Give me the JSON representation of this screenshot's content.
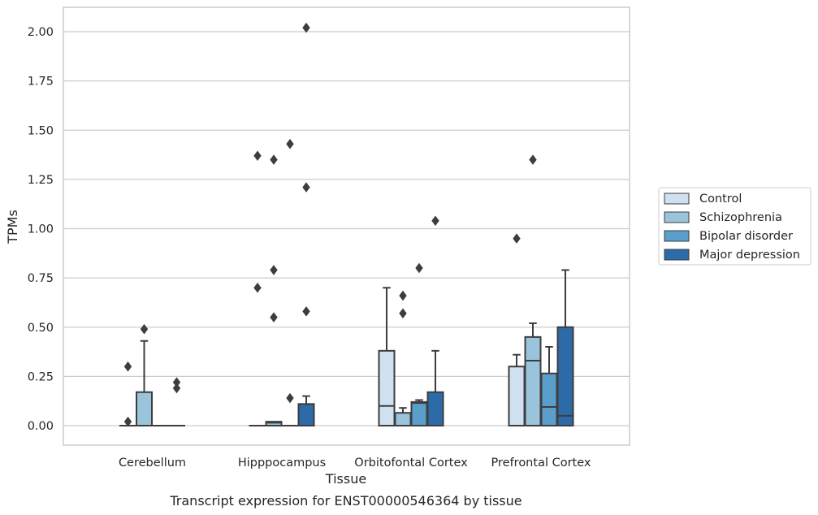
{
  "chart_data": {
    "type": "box",
    "title": "Transcript expression for ENST00000546364 by tissue",
    "xlabel": "Tissue",
    "ylabel": "TPMs",
    "ylim": [
      -0.1,
      2.12
    ],
    "yticks": [
      0.0,
      0.25,
      0.5,
      0.75,
      1.0,
      1.25,
      1.5,
      1.75,
      2.0
    ],
    "ytick_labels": [
      "0.00",
      "0.25",
      "0.50",
      "0.75",
      "1.00",
      "1.25",
      "1.50",
      "1.75",
      "2.00"
    ],
    "grid": "horizontal",
    "legend_position": "right",
    "categories": [
      "Cerebellum",
      "Hipppocampus",
      "Orbitofontal Cortex",
      "Prefrontal Cortex"
    ],
    "series": [
      {
        "name": "Control",
        "color": "#cfe1f0",
        "boxes": [
          {
            "q1": 0.0,
            "median": 0.0,
            "q3": 0.0,
            "whisker_low": 0.0,
            "whisker_high": 0.0,
            "outliers": [
              0.02,
              0.3
            ]
          },
          {
            "q1": 0.0,
            "median": 0.0,
            "q3": 0.0,
            "whisker_low": 0.0,
            "whisker_high": 0.0,
            "outliers": [
              0.7,
              1.37
            ]
          },
          {
            "q1": 0.0,
            "median": 0.1,
            "q3": 0.38,
            "whisker_low": 0.0,
            "whisker_high": 0.7,
            "outliers": []
          },
          {
            "q1": 0.0,
            "median": 0.0,
            "q3": 0.3,
            "whisker_low": 0.0,
            "whisker_high": 0.36,
            "outliers": [
              0.95
            ]
          }
        ]
      },
      {
        "name": "Schizophrenia",
        "color": "#9ac3dc",
        "boxes": [
          {
            "q1": 0.0,
            "median": 0.0,
            "q3": 0.17,
            "whisker_low": 0.0,
            "whisker_high": 0.43,
            "outliers": [
              0.49
            ]
          },
          {
            "q1": 0.0,
            "median": 0.015,
            "q3": 0.02,
            "whisker_low": 0.0,
            "whisker_high": 0.02,
            "outliers": [
              0.55,
              0.79,
              1.35
            ]
          },
          {
            "q1": 0.0,
            "median": 0.0,
            "q3": 0.065,
            "whisker_low": 0.0,
            "whisker_high": 0.09,
            "outliers": [
              0.57,
              0.66
            ]
          },
          {
            "q1": 0.0,
            "median": 0.33,
            "q3": 0.45,
            "whisker_low": 0.0,
            "whisker_high": 0.52,
            "outliers": [
              1.35
            ]
          }
        ]
      },
      {
        "name": "Bipolar disorder",
        "color": "#5b9ecb",
        "boxes": [
          {
            "q1": 0.0,
            "median": 0.0,
            "q3": 0.0,
            "whisker_low": 0.0,
            "whisker_high": 0.0,
            "outliers": []
          },
          {
            "q1": 0.0,
            "median": 0.0,
            "q3": 0.0,
            "whisker_low": 0.0,
            "whisker_high": 0.0,
            "outliers": [
              0.14,
              1.43
            ]
          },
          {
            "q1": 0.0,
            "median": 0.115,
            "q3": 0.12,
            "whisker_low": 0.0,
            "whisker_high": 0.13,
            "outliers": [
              0.8
            ]
          },
          {
            "q1": 0.0,
            "median": 0.095,
            "q3": 0.265,
            "whisker_low": 0.0,
            "whisker_high": 0.4,
            "outliers": []
          }
        ]
      },
      {
        "name": "Major depression",
        "color": "#2c6aa8",
        "boxes": [
          {
            "q1": 0.0,
            "median": 0.0,
            "q3": 0.0,
            "whisker_low": 0.0,
            "whisker_high": 0.0,
            "outliers": [
              0.19,
              0.22
            ]
          },
          {
            "q1": 0.0,
            "median": 0.0,
            "q3": 0.11,
            "whisker_low": 0.0,
            "whisker_high": 0.15,
            "outliers": [
              0.58,
              1.21,
              2.02
            ]
          },
          {
            "q1": 0.0,
            "median": 0.0,
            "q3": 0.17,
            "whisker_low": 0.0,
            "whisker_high": 0.38,
            "outliers": [
              1.04
            ]
          },
          {
            "q1": 0.0,
            "median": 0.05,
            "q3": 0.5,
            "whisker_low": 0.0,
            "whisker_high": 0.79,
            "outliers": []
          }
        ]
      }
    ],
    "colors": {
      "grid": "#cccccc",
      "frame": "#cccccc",
      "edge": "#3d3d3d",
      "text": "#262626"
    }
  }
}
